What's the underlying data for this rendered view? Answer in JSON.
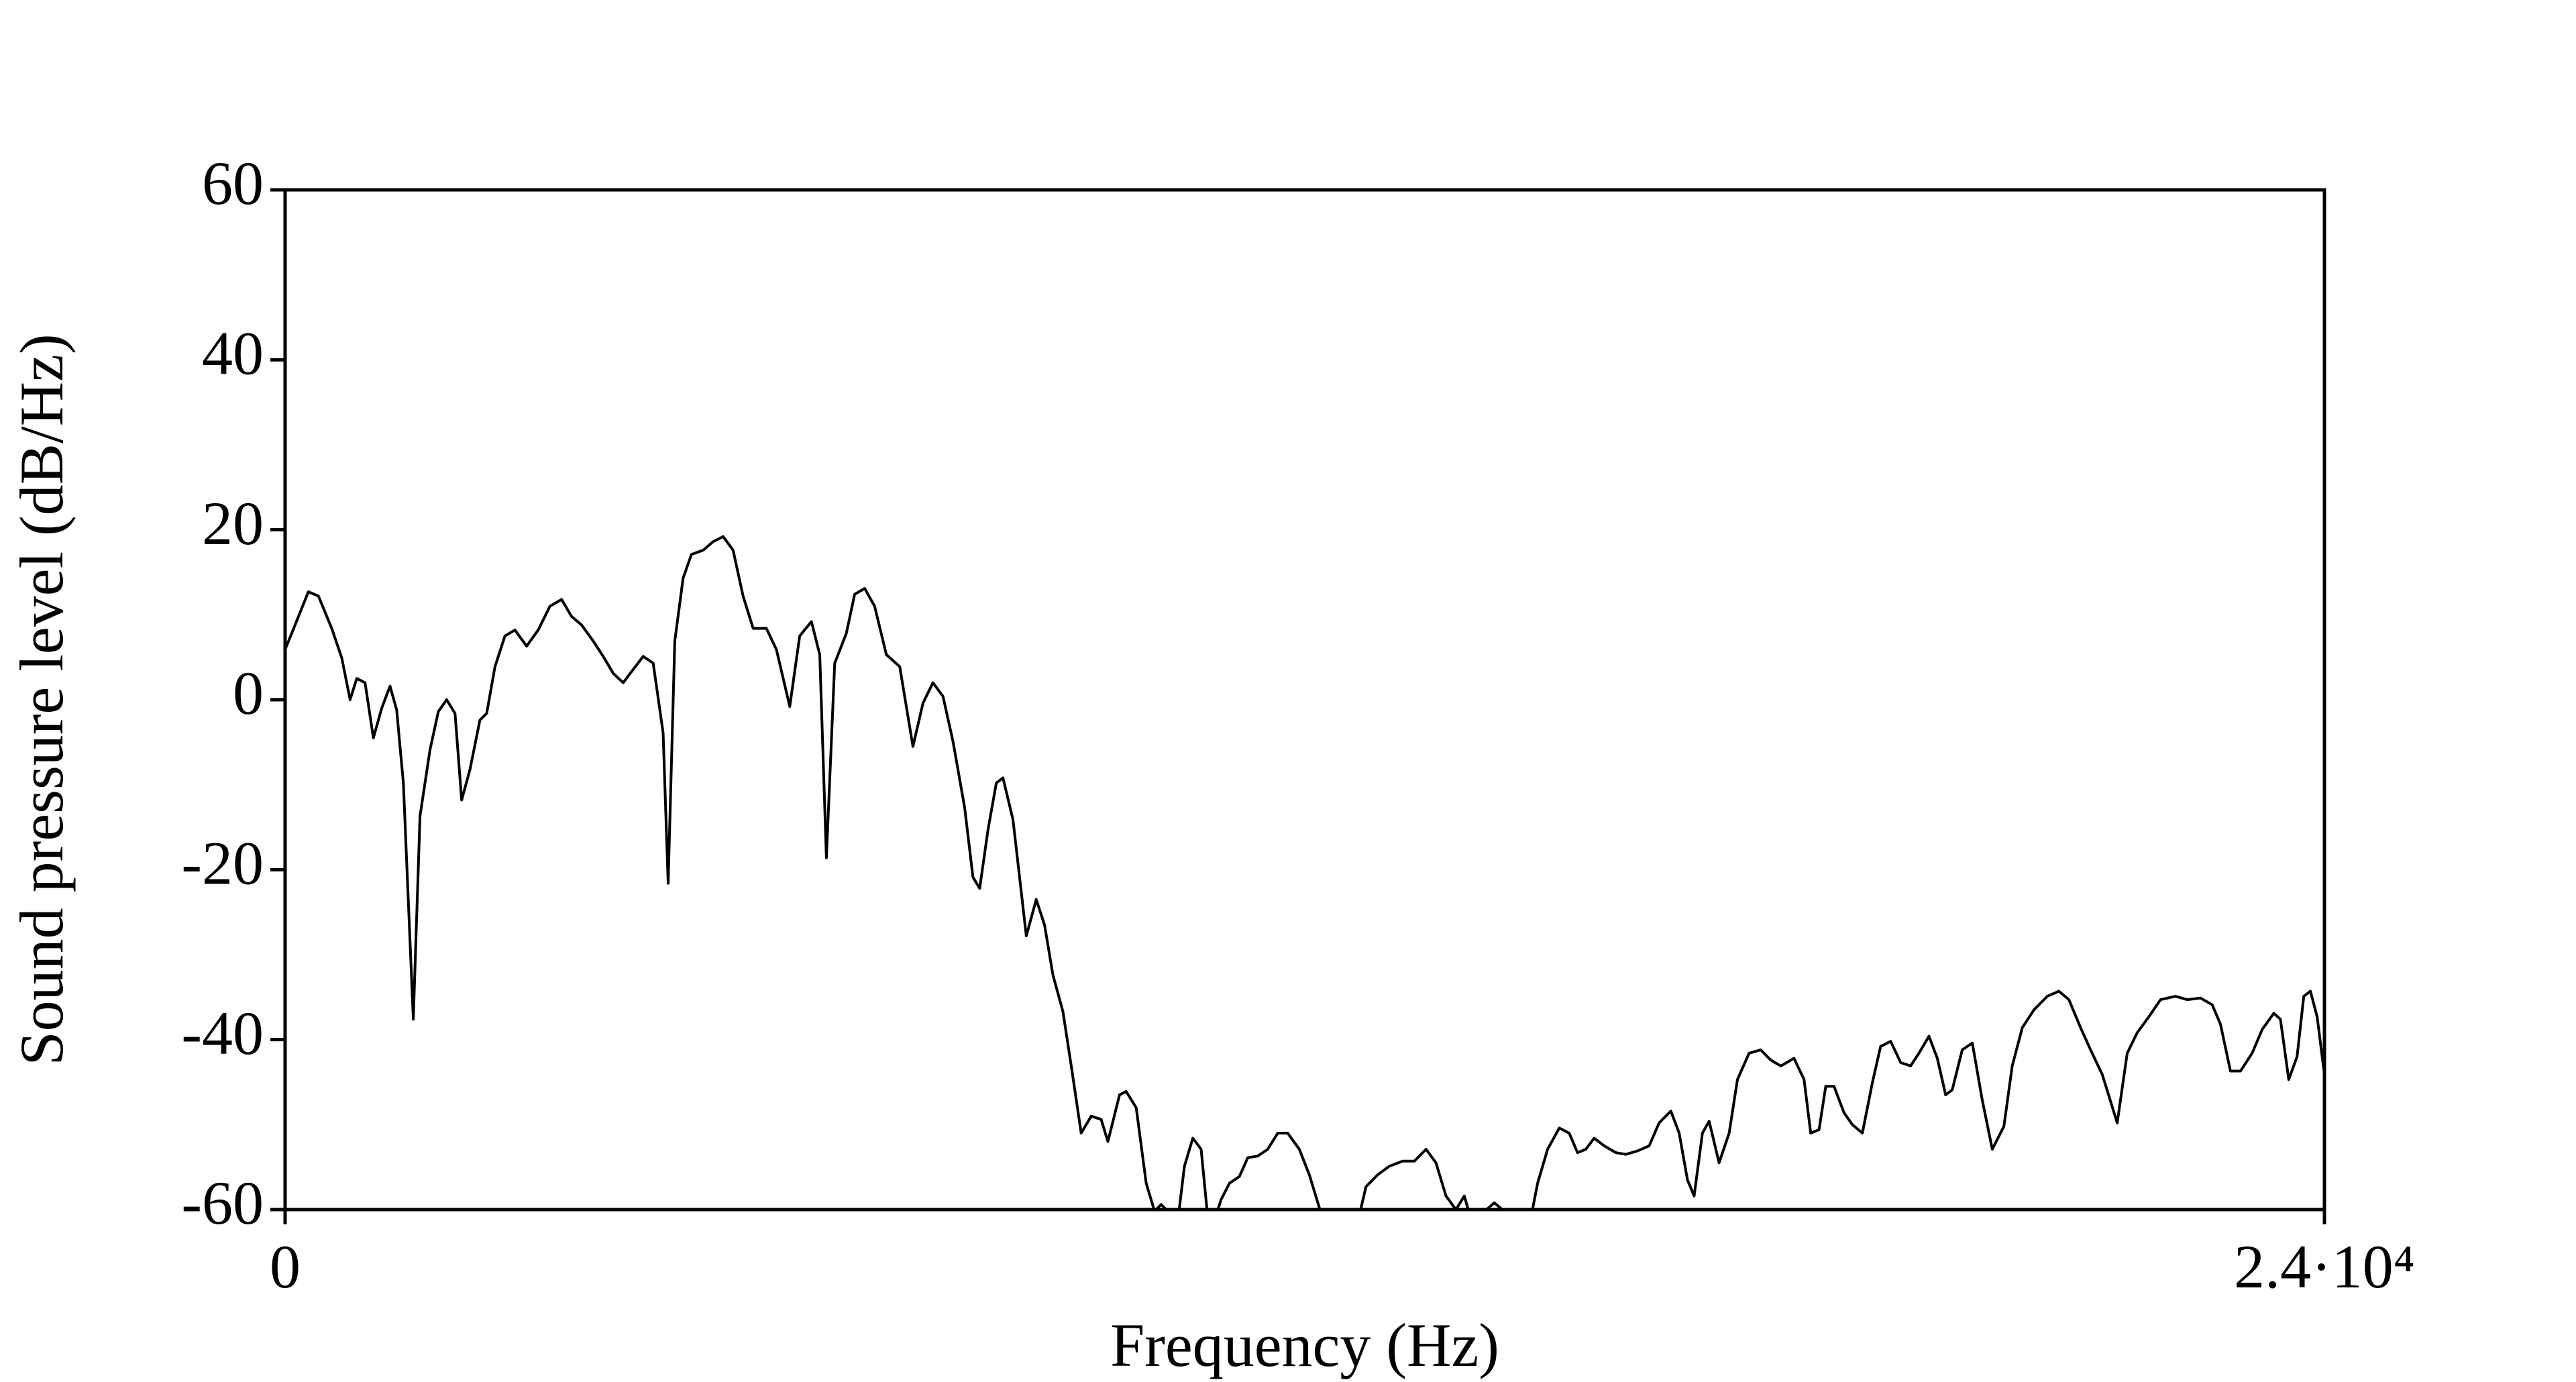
{
  "chart_data": {
    "type": "line",
    "x_label": "Frequency (Hz)",
    "y_label": "Sound pressure level (dB/Hz)",
    "color": "#000000",
    "xlim": [
      0,
      24000
    ],
    "xticks": [
      0,
      {
        "value": 24000,
        "label": "2.4·10⁴"
      }
    ],
    "ylim": [
      -60,
      60
    ],
    "yticks": [
      -60,
      -40,
      -20,
      0,
      20,
      40,
      60
    ],
    "x": [
      0,
      118,
      274,
      392,
      549,
      667,
      765,
      843,
      941,
      1039,
      1137,
      1235,
      1313,
      1392,
      1509,
      1588,
      1705,
      1803,
      1901,
      2000,
      2078,
      2176,
      2293,
      2372,
      2470,
      2587,
      2705,
      2842,
      2979,
      3116,
      3254,
      3371,
      3489,
      3626,
      3744,
      3861,
      3979,
      4077,
      4214,
      4332,
      4449,
      4508,
      4586,
      4684,
      4782,
      4920,
      5037,
      5155,
      5272,
      5390,
      5508,
      5664,
      5782,
      5939,
      6056,
      6194,
      6292,
      6370,
      6468,
      6605,
      6703,
      6821,
      6938,
      7076,
      7233,
      7389,
      7507,
      7624,
      7742,
      7860,
      7997,
      8095,
      8174,
      8272,
      8370,
      8448,
      8566,
      8723,
      8840,
      8938,
      9036,
      9154,
      9252,
      9369,
      9487,
      9604,
      9683,
      9820,
      9898,
      10016,
      10134,
      10232,
      10310,
      10408,
      10486,
      10584,
      10682,
      10780,
      10878,
      11016,
      11114,
      11231,
      11329,
      11446,
      11564,
      11682,
      11799,
      11936,
      12054,
      12172,
      12289,
      12564,
      12721,
      12858,
      12995,
      13152,
      13289,
      13427,
      13544,
      13662,
      13779,
      13877,
      13975,
      14093,
      14230,
      14348,
      14485,
      14622,
      14740,
      14858,
      14995,
      15112,
      15210,
      15308,
      15406,
      15524,
      15661,
      15779,
      15916,
      16053,
      16170,
      16308,
      16406,
      16504,
      16582,
      16680,
      16759,
      16876,
      16994,
      17092,
      17229,
      17366,
      17484,
      17602,
      17758,
      17876,
      17954,
      18052,
      18131,
      18229,
      18346,
      18444,
      18562,
      18679,
      18777,
      18895,
      19013,
      19130,
      19228,
      19346,
      19444,
      19542,
      19620,
      19738,
      19856,
      19973,
      20091,
      20228,
      20326,
      20444,
      20581,
      20738,
      20875,
      20993,
      21130,
      21248,
      21385,
      21561,
      21679,
      21796,
      21934,
      22071,
      22247,
      22385,
      22541,
      22679,
      22777,
      22894,
      23012,
      23149,
      23267,
      23404,
      23482,
      23580,
      23678,
      23757,
      23835,
      23914,
      24000
    ],
    "values": [
      5.9,
      8.8,
      12.7,
      12.2,
      8.4,
      4.9,
      0,
      2.5,
      2,
      -4.5,
      -1,
      1.6,
      -1.2,
      -9.8,
      -37.6,
      -13.7,
      -5.9,
      -1.4,
      0,
      -1.6,
      -11.8,
      -8.2,
      -2.4,
      -1.6,
      3.9,
      7.5,
      8.2,
      6.3,
      8.2,
      11,
      11.8,
      9.8,
      8.8,
      6.9,
      5.1,
      3.1,
      2,
      3.3,
      5.1,
      4.3,
      -3.9,
      -21.6,
      6.9,
      14.3,
      17.1,
      17.6,
      18.6,
      19.2,
      17.6,
      12.2,
      8.4,
      8.4,
      5.9,
      -0.8,
      7.5,
      9.2,
      5.3,
      -18.6,
      4.3,
      7.8,
      12.4,
      13.1,
      11,
      5.3,
      3.9,
      -5.5,
      -0.4,
      2,
      0.4,
      -4.9,
      -12.7,
      -20.9,
      -22.2,
      -15.3,
      -9.8,
      -9.2,
      -14.1,
      -27.8,
      -23.5,
      -26.5,
      -32.4,
      -36.7,
      -43.1,
      -51,
      -49,
      -49.4,
      -52,
      -46.5,
      -46.1,
      -48,
      -56.9,
      -60.2,
      -59.4,
      -60.4,
      -63,
      -54.9,
      -51.6,
      -52.9,
      -63,
      -58.8,
      -56.9,
      -56.1,
      -53.9,
      -53.7,
      -52.9,
      -51,
      -51,
      -52.9,
      -55.9,
      -59.8,
      -64,
      -64,
      -57.3,
      -55.9,
      -54.9,
      -54.3,
      -54.3,
      -52.9,
      -54.5,
      -58.4,
      -60,
      -58.4,
      -61.8,
      -60.4,
      -59.2,
      -60.2,
      -63,
      -63,
      -56.9,
      -52.9,
      -50.4,
      -51,
      -53.3,
      -52.9,
      -51.6,
      -52.5,
      -53.3,
      -53.5,
      -53.1,
      -52.5,
      -49.8,
      -48.4,
      -51,
      -56.5,
      -58.4,
      -51,
      -49.6,
      -54.5,
      -51,
      -44.7,
      -41.6,
      -41.2,
      -42.4,
      -43.1,
      -42.2,
      -44.7,
      -51,
      -50.6,
      -45.5,
      -45.5,
      -48.6,
      -50,
      -51,
      -45.1,
      -40.8,
      -40.2,
      -42.7,
      -43.1,
      -41.6,
      -39.6,
      -42.2,
      -46.5,
      -45.9,
      -41.2,
      -40.4,
      -47.1,
      -52.9,
      -50.2,
      -43.1,
      -38.6,
      -36.5,
      -34.9,
      -34.3,
      -35.3,
      -38.6,
      -41.2,
      -44.1,
      -49.8,
      -41.6,
      -39.2,
      -37.3,
      -35.3,
      -34.9,
      -35.3,
      -35.1,
      -35.9,
      -38.2,
      -43.7,
      -43.7,
      -41.6,
      -38.8,
      -36.9,
      -37.6,
      -44.7,
      -42,
      -34.9,
      -34.3,
      -37.3,
      -44.1
    ]
  }
}
